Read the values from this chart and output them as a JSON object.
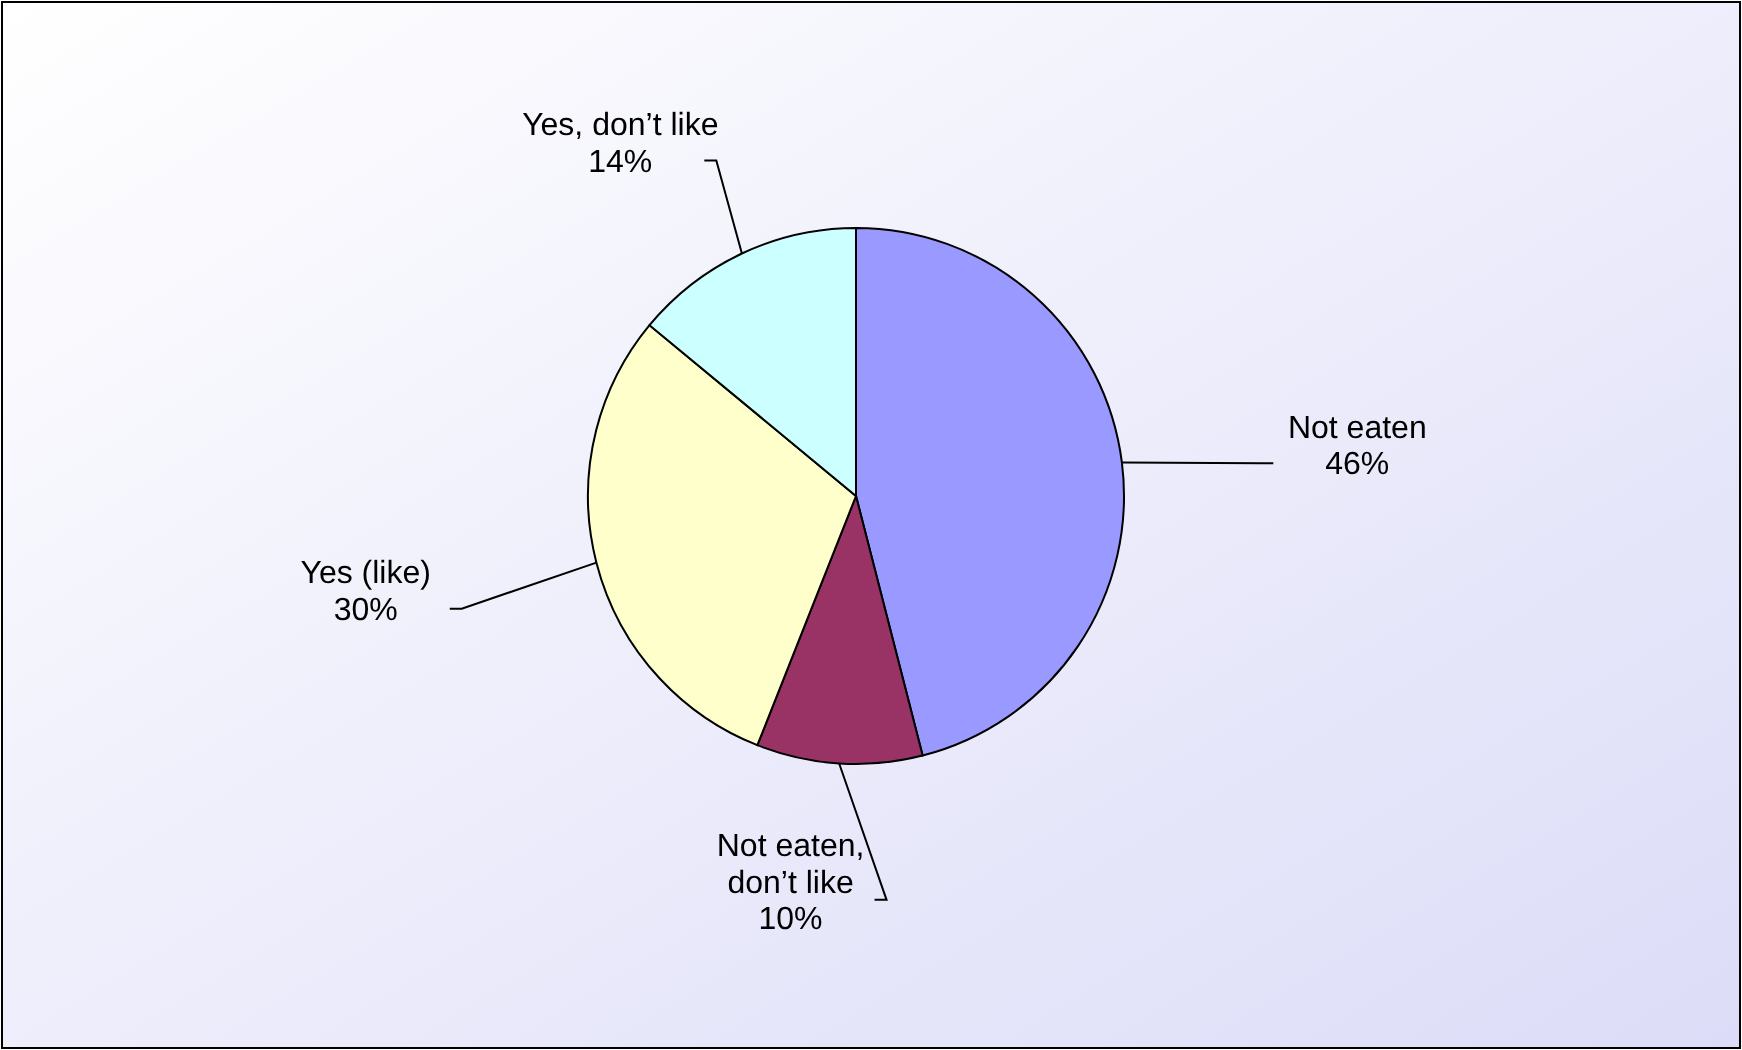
{
  "chart_data": {
    "type": "pie",
    "categories": [
      "Not eaten",
      "Not eaten, don’t like",
      "Yes (like)",
      "Yes, don’t like"
    ],
    "values": [
      46,
      10,
      30,
      14
    ],
    "value_labels": [
      "46%",
      "10%",
      "30%",
      "14%"
    ],
    "colors": [
      "#9999ff",
      "#993366",
      "#ffffcc",
      "#ccffff"
    ]
  }
}
